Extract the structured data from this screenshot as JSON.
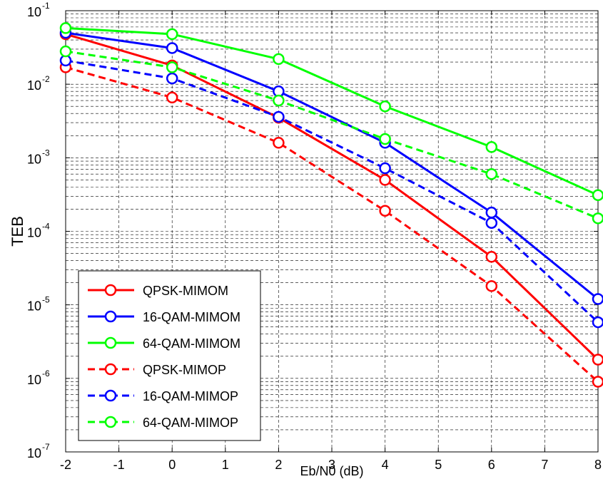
{
  "chart_data": {
    "type": "line",
    "title": "",
    "xlabel": "Eb/N0 (dB)",
    "ylabel": "TEB",
    "xlim": [
      -2,
      8
    ],
    "ylim": [
      1e-07,
      0.1
    ],
    "yscale": "log",
    "grid": true,
    "legend_position": "bottom-left",
    "x_ticks": [
      "-2",
      "-1",
      "0",
      "1",
      "2",
      "3",
      "4",
      "5",
      "6",
      "7",
      "8"
    ],
    "y_ticks": [
      {
        "base": "10",
        "exp": "-7"
      },
      {
        "base": "10",
        "exp": "-6"
      },
      {
        "base": "10",
        "exp": "-5"
      },
      {
        "base": "10",
        "exp": "-4"
      },
      {
        "base": "10",
        "exp": "-3"
      },
      {
        "base": "10",
        "exp": "-2"
      },
      {
        "base": "10",
        "exp": "-1"
      }
    ],
    "x": [
      -2,
      0,
      2,
      4,
      6,
      8
    ],
    "series": [
      {
        "name": "QPSK-MIMOM",
        "color": "#ff0000",
        "dashed": false,
        "marker": "circle",
        "values": [
          0.048,
          0.018,
          0.0035,
          0.0005,
          4.5e-05,
          1.8e-06
        ]
      },
      {
        "name": "16-QAM-MIMOM",
        "color": "#0000ff",
        "dashed": false,
        "marker": "circle",
        "values": [
          0.05,
          0.031,
          0.008,
          0.0016,
          0.00018,
          1.2e-05
        ]
      },
      {
        "name": "64-QAM-MIMOM",
        "color": "#00ff00",
        "dashed": false,
        "marker": "circle",
        "values": [
          0.058,
          0.048,
          0.022,
          0.005,
          0.0014,
          0.00031
        ]
      },
      {
        "name": "QPSK-MIMOP",
        "color": "#ff0000",
        "dashed": true,
        "marker": "circle",
        "values": [
          0.017,
          0.0066,
          0.0016,
          0.00019,
          1.8e-05,
          9e-07
        ]
      },
      {
        "name": "16-QAM-MIMOP",
        "color": "#0000ff",
        "dashed": true,
        "marker": "circle",
        "values": [
          0.021,
          0.012,
          0.0036,
          0.00072,
          0.00013,
          5.8e-06
        ]
      },
      {
        "name": "64-QAM-MIMOP",
        "color": "#00ff00",
        "dashed": true,
        "marker": "circle",
        "values": [
          0.028,
          0.017,
          0.006,
          0.0018,
          0.0006,
          0.00015
        ]
      }
    ]
  }
}
